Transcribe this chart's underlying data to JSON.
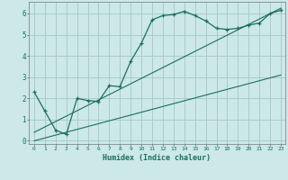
{
  "xlabel": "Humidex (Indice chaleur)",
  "ylabel": "",
  "background_color": "#cce8e8",
  "grid_color": "#aacccc",
  "line_color": "#1a6e60",
  "xlim": [
    -0.5,
    23.4
  ],
  "ylim": [
    -0.15,
    6.55
  ],
  "xticks": [
    0,
    1,
    2,
    3,
    4,
    5,
    6,
    7,
    8,
    9,
    10,
    11,
    12,
    13,
    14,
    15,
    16,
    17,
    18,
    19,
    20,
    21,
    22,
    23
  ],
  "yticks": [
    0,
    1,
    2,
    3,
    4,
    5,
    6
  ],
  "curve_x": [
    0,
    1,
    2,
    3,
    4,
    5,
    6,
    7,
    8,
    9,
    10,
    11,
    12,
    13,
    14,
    15,
    16,
    17,
    18,
    19,
    20,
    21,
    22,
    23
  ],
  "curve_y": [
    2.3,
    1.4,
    0.5,
    0.3,
    2.0,
    1.9,
    1.85,
    2.6,
    2.55,
    3.75,
    4.6,
    5.7,
    5.9,
    5.95,
    6.1,
    5.9,
    5.65,
    5.3,
    5.25,
    5.3,
    5.45,
    5.55,
    6.0,
    6.15
  ],
  "line1_x": [
    0,
    23
  ],
  "line1_y": [
    0.0,
    3.1
  ],
  "line2_x": [
    0,
    23
  ],
  "line2_y": [
    0.4,
    6.25
  ]
}
